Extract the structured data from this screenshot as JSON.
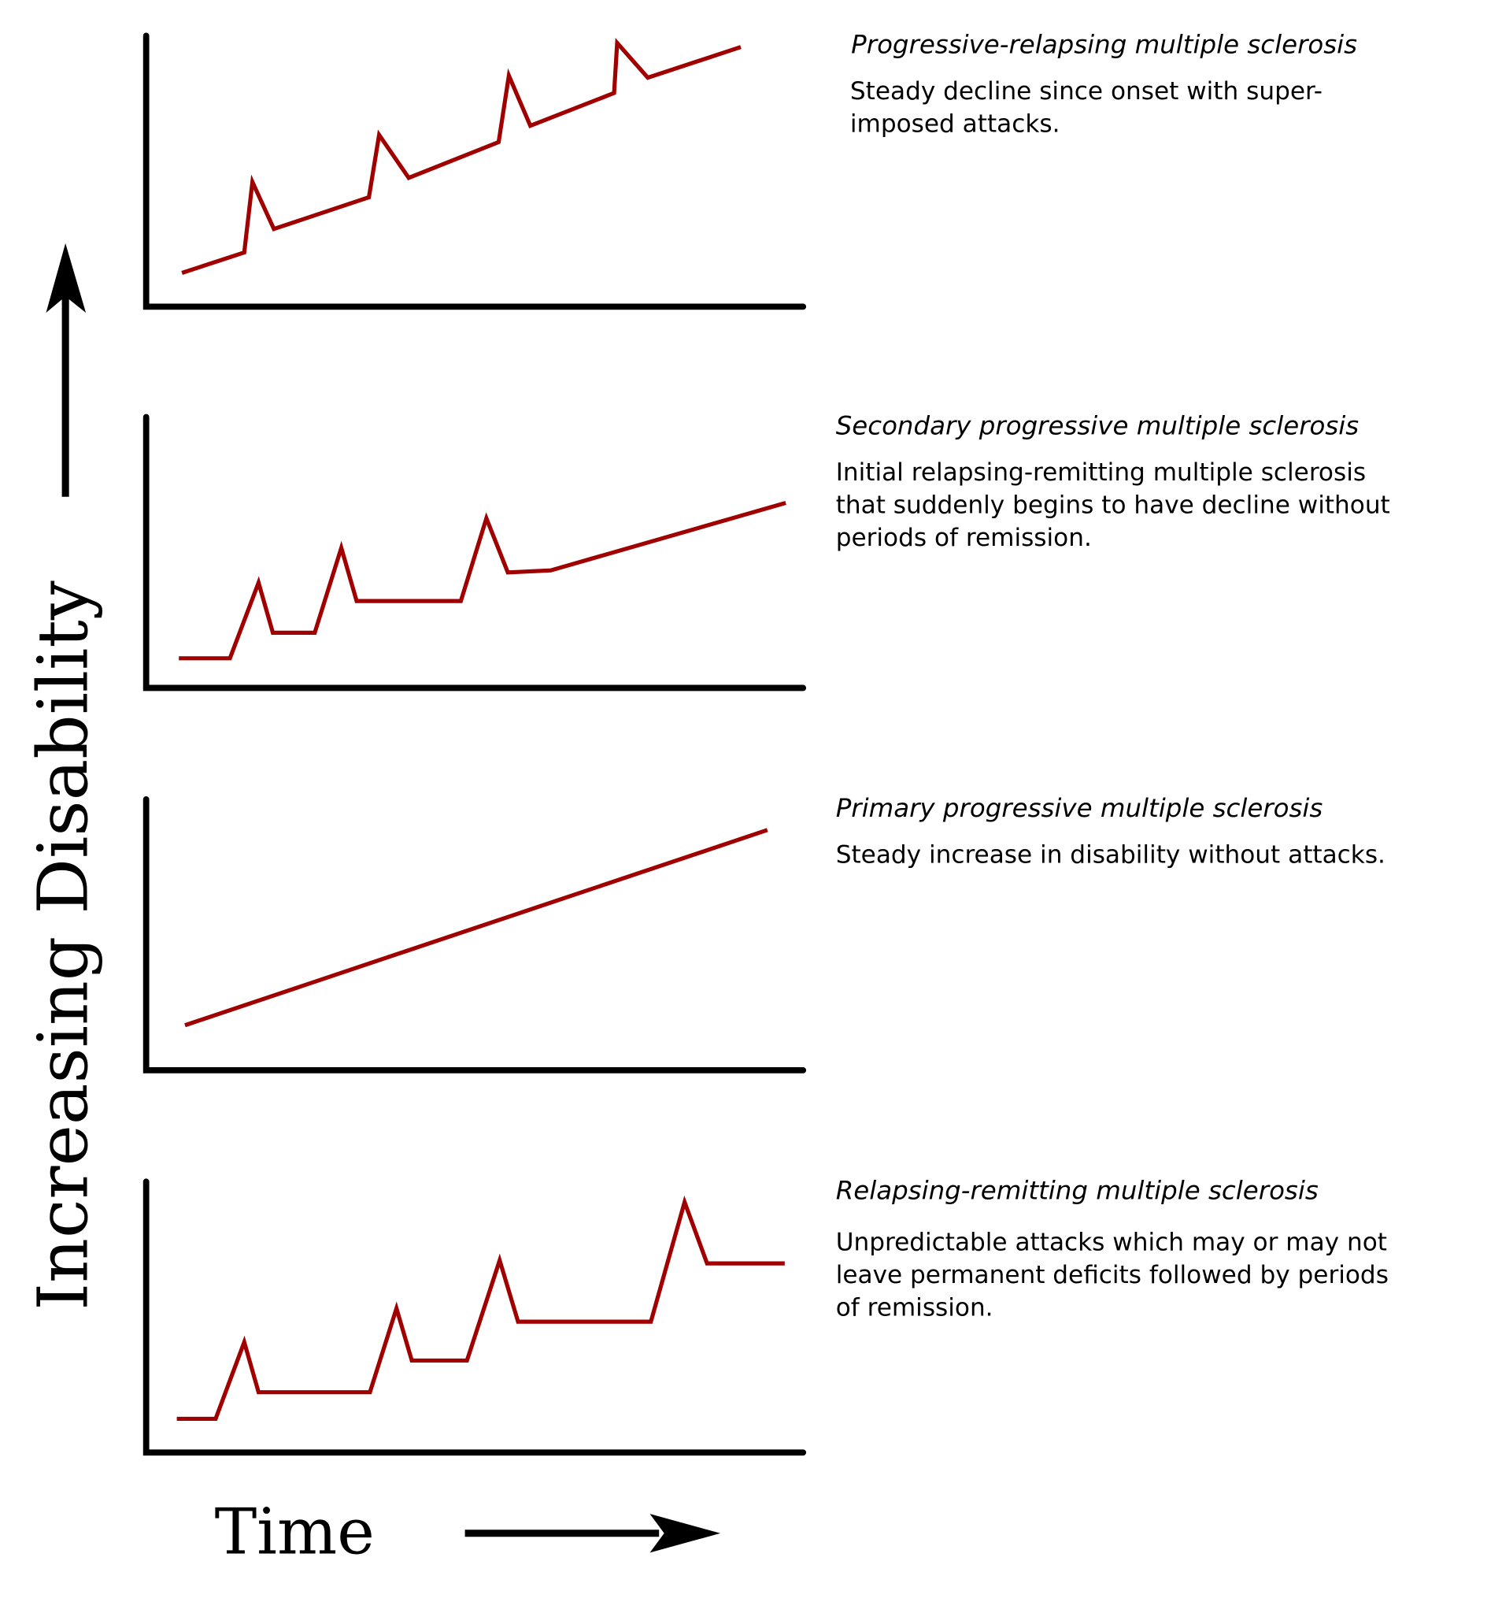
{
  "y_label": "Increasing Disability",
  "x_label": "Time",
  "line_color": "#a00000",
  "panels": [
    {
      "title": "Progressive-relapsing multiple sclerosis",
      "description": [
        "Steady decline since onset with super-",
        "imposed attacks."
      ]
    },
    {
      "title": "Secondary progressive multiple sclerosis",
      "description": [
        "Initial relapsing-remitting multiple sclerosis",
        "that suddenly begins to have decline without",
        "periods of remission."
      ]
    },
    {
      "title": "Primary progressive multiple sclerosis",
      "description": [
        "Steady increase in disability without attacks."
      ]
    },
    {
      "title": "Relapsing-remitting multiple sclerosis",
      "description": [
        "Unpredictable attacks which may or may not",
        "leave permanent deficits followed by periods",
        "of remission."
      ]
    }
  ]
}
